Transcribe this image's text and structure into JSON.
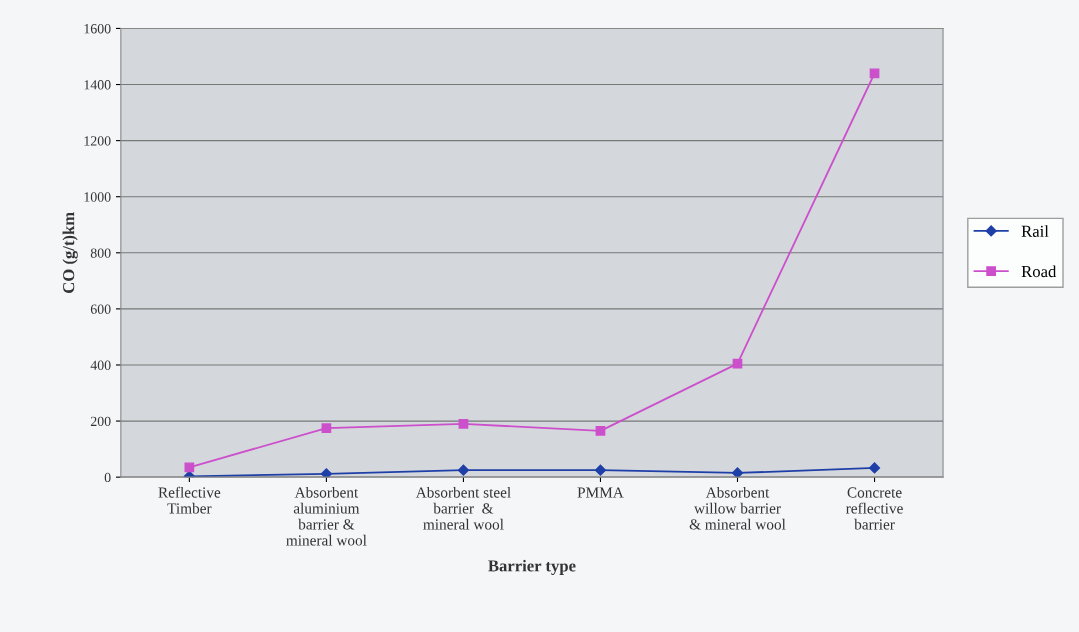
{
  "chart_data": {
    "type": "line",
    "xlabel": "Barrier type",
    "ylabel": "CO (g/t)km",
    "categories": [
      "Reflective\nTimber",
      "Absorbent\naluminium\nbarrier &\nmineral wool",
      "Absorbent steel\nbarrier  &\nmineral wool",
      "PMMA",
      "Absorbent\nwillow barrier\n& mineral wool",
      "Concrete\nreflective\nbarrier"
    ],
    "series": [
      {
        "name": "Rail",
        "color": "#1f3fa8",
        "marker": "diamond",
        "values": [
          3,
          12,
          25,
          25,
          15,
          33
        ]
      },
      {
        "name": "Road",
        "color": "#cc4fcc",
        "marker": "square",
        "values": [
          35,
          175,
          190,
          165,
          405,
          1440
        ]
      }
    ],
    "ylim": [
      0,
      1600
    ],
    "yticks": [
      0,
      200,
      400,
      600,
      800,
      1000,
      1200,
      1400,
      1600
    ],
    "grid": "y",
    "legend": "right"
  }
}
